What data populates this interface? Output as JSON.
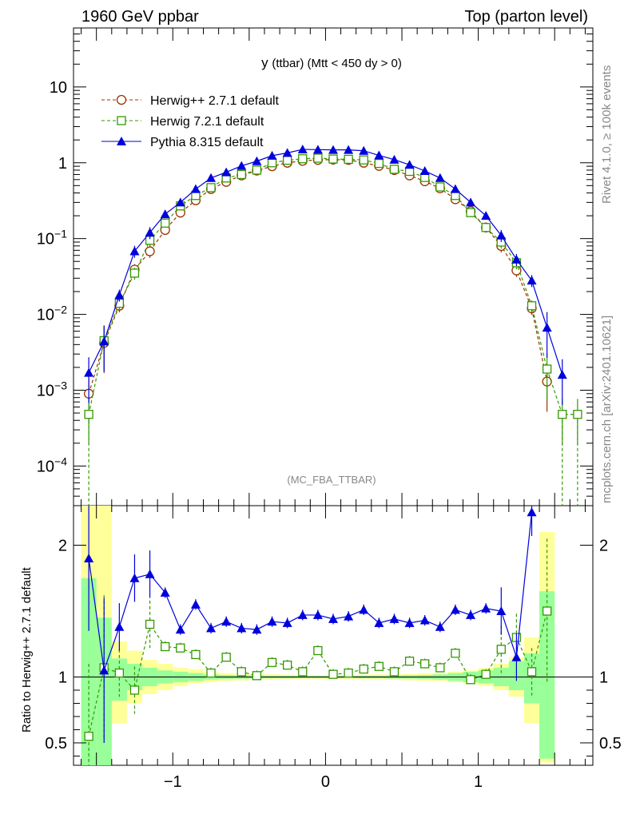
{
  "header": {
    "left_title": "1960 GeV ppbar",
    "right_title": "Top (parton level)"
  },
  "side_labels": {
    "rivet": "Rivet 4.1.0, ≥ 100k events",
    "mcplots": "mcplots.cern.ch [arXiv:2401.10621]"
  },
  "watermark": "(MC_FBA_TTBAR)",
  "colors": {
    "herwigpp": "#993300",
    "herwig7": "#339900",
    "pythia": "#0000dd",
    "band_yellow": "#ffff99",
    "band_green": "#99ff99"
  },
  "chart_data": [
    {
      "type": "line",
      "panel": "main",
      "title": "y (ttbar) (Mtt < 450 dy > 0)",
      "title_parts": {
        "var": "y",
        "rest": "(ttbar) (Mtt < 450 dy > 0)"
      },
      "xlabel": "",
      "ylabel": "",
      "xlim": [
        -1.65,
        1.75
      ],
      "ylim": [
        3e-05,
        60
      ],
      "yscale": "log",
      "ytick_labels": [
        "10",
        "1",
        "10^-1",
        "10^-2",
        "10^-3",
        "10^-4"
      ],
      "ytick_values": [
        10,
        1,
        0.1,
        0.01,
        0.001,
        0.0001
      ],
      "legend_position": "top-left",
      "x": [
        -1.55,
        -1.45,
        -1.35,
        -1.25,
        -1.15,
        -1.05,
        -0.95,
        -0.85,
        -0.75,
        -0.65,
        -0.55,
        -0.45,
        -0.35,
        -0.25,
        -0.15,
        -0.05,
        0.05,
        0.15,
        0.25,
        0.35,
        0.45,
        0.55,
        0.65,
        0.75,
        0.85,
        0.95,
        1.05,
        1.15,
        1.25,
        1.35,
        1.45,
        1.55,
        1.65
      ],
      "series": [
        {
          "name": "Herwig++ 2.7.1 default",
          "marker": "open-circle",
          "style": "dashed",
          "values": [
            0.0009,
            0.0042,
            0.013,
            0.039,
            0.068,
            0.13,
            0.22,
            0.32,
            0.45,
            0.56,
            0.68,
            0.79,
            0.9,
            1.0,
            1.06,
            1.09,
            1.1,
            1.09,
            1.0,
            0.91,
            0.8,
            0.68,
            0.57,
            0.46,
            0.33,
            0.23,
            0.14,
            0.08,
            0.038,
            0.012,
            0.0013,
            null,
            null
          ]
        },
        {
          "name": "Herwig 7.2.1 default",
          "marker": "open-square",
          "style": "dashed",
          "values": [
            0.00048,
            0.0045,
            0.014,
            0.035,
            0.095,
            0.16,
            0.27,
            0.37,
            0.47,
            0.63,
            0.7,
            0.8,
            1.0,
            1.08,
            1.13,
            1.15,
            1.12,
            1.11,
            1.09,
            0.98,
            0.82,
            0.77,
            0.64,
            0.48,
            0.37,
            0.22,
            0.14,
            0.09,
            0.048,
            0.013,
            0.0019,
            0.00048,
            0.00048
          ]
        },
        {
          "name": "Pythia 8.315 default",
          "marker": "filled-triangle",
          "style": "solid",
          "values": [
            0.0017,
            0.0044,
            0.018,
            0.068,
            0.12,
            0.21,
            0.3,
            0.45,
            0.63,
            0.75,
            0.91,
            1.05,
            1.24,
            1.35,
            1.5,
            1.49,
            1.48,
            1.48,
            1.44,
            1.25,
            1.1,
            0.94,
            0.78,
            0.63,
            0.45,
            0.3,
            0.2,
            0.11,
            0.053,
            0.028,
            0.0067,
            0.0016,
            null
          ]
        }
      ]
    },
    {
      "type": "line",
      "panel": "ratio",
      "ylabel": "Ratio to Herwig++ 2.7.1 default",
      "xlabel": "",
      "xlim": [
        -1.65,
        1.75
      ],
      "ylim": [
        0.33,
        2.3
      ],
      "ytick_labels": [
        "2",
        "1",
        "0.5"
      ],
      "ytick_values": [
        2,
        1,
        0.5
      ],
      "xtick_labels": [
        "−1",
        "0",
        "1"
      ],
      "xtick_values": [
        -1,
        0,
        1
      ],
      "x": [
        -1.55,
        -1.45,
        -1.35,
        -1.25,
        -1.15,
        -1.05,
        -0.95,
        -0.85,
        -0.75,
        -0.65,
        -0.55,
        -0.45,
        -0.35,
        -0.25,
        -0.15,
        -0.05,
        0.05,
        0.15,
        0.25,
        0.35,
        0.45,
        0.55,
        0.65,
        0.75,
        0.85,
        0.95,
        1.05,
        1.15,
        1.25,
        1.35,
        1.45,
        1.55,
        1.65
      ],
      "band_yellow": [
        [
          0.33,
          2.3
        ],
        [
          0.33,
          2.3
        ],
        [
          0.65,
          1.27
        ],
        [
          0.8,
          1.2
        ],
        [
          0.87,
          1.13
        ],
        [
          0.9,
          1.1
        ],
        [
          0.93,
          1.07
        ],
        [
          0.95,
          1.06
        ],
        [
          0.96,
          1.04
        ],
        [
          0.97,
          1.03
        ],
        [
          0.975,
          1.025
        ],
        [
          0.98,
          1.02
        ],
        [
          0.98,
          1.02
        ],
        [
          0.982,
          1.018
        ],
        [
          0.985,
          1.015
        ],
        [
          0.985,
          1.015
        ],
        [
          0.985,
          1.015
        ],
        [
          0.985,
          1.015
        ],
        [
          0.982,
          1.018
        ],
        [
          0.98,
          1.02
        ],
        [
          0.98,
          1.02
        ],
        [
          0.975,
          1.025
        ],
        [
          0.97,
          1.03
        ],
        [
          0.97,
          1.03
        ],
        [
          0.96,
          1.04
        ],
        [
          0.95,
          1.05
        ],
        [
          0.93,
          1.07
        ],
        [
          0.9,
          1.1
        ],
        [
          0.85,
          1.15
        ],
        [
          0.65,
          1.3
        ],
        [
          0.35,
          2.1
        ],
        null,
        null
      ],
      "band_green": [
        [
          0.33,
          1.75
        ],
        [
          0.33,
          1.45
        ],
        [
          0.82,
          1.14
        ],
        [
          0.9,
          1.1
        ],
        [
          0.93,
          1.07
        ],
        [
          0.95,
          1.05
        ],
        [
          0.96,
          1.04
        ],
        [
          0.97,
          1.03
        ],
        [
          0.98,
          1.02
        ],
        [
          0.985,
          1.015
        ],
        [
          0.987,
          1.013
        ],
        [
          0.988,
          1.012
        ],
        [
          0.99,
          1.01
        ],
        [
          0.99,
          1.01
        ],
        [
          0.992,
          1.008
        ],
        [
          0.992,
          1.008
        ],
        [
          0.992,
          1.008
        ],
        [
          0.992,
          1.008
        ],
        [
          0.99,
          1.01
        ],
        [
          0.99,
          1.01
        ],
        [
          0.988,
          1.012
        ],
        [
          0.987,
          1.013
        ],
        [
          0.985,
          1.015
        ],
        [
          0.98,
          1.02
        ],
        [
          0.97,
          1.03
        ],
        [
          0.96,
          1.04
        ],
        [
          0.95,
          1.05
        ],
        [
          0.93,
          1.07
        ],
        [
          0.9,
          1.12
        ],
        [
          0.8,
          1.18
        ],
        [
          0.38,
          1.65
        ],
        null,
        null
      ],
      "series": [
        {
          "name": "Herwig 7.2.1 default",
          "values": [
            0.55,
            1.07,
            1.03,
            0.9,
            1.4,
            1.23,
            1.22,
            1.17,
            1.03,
            1.15,
            1.04,
            1.01,
            1.11,
            1.09,
            1.04,
            1.2,
            1.02,
            1.03,
            1.06,
            1.08,
            1.04,
            1.12,
            1.1,
            1.07,
            1.18,
            0.98,
            1.02,
            1.21,
            1.3,
            1.04,
            1.5,
            null,
            null
          ]
        },
        {
          "name": "Pythia 8.315 default",
          "values": [
            1.9,
            1.05,
            1.38,
            1.75,
            1.78,
            1.64,
            1.36,
            1.55,
            1.37,
            1.42,
            1.37,
            1.36,
            1.42,
            1.41,
            1.47,
            1.47,
            1.44,
            1.46,
            1.51,
            1.41,
            1.44,
            1.41,
            1.43,
            1.38,
            1.51,
            1.47,
            1.52,
            1.5,
            1.15,
            2.25,
            null,
            null,
            null
          ]
        }
      ]
    }
  ]
}
